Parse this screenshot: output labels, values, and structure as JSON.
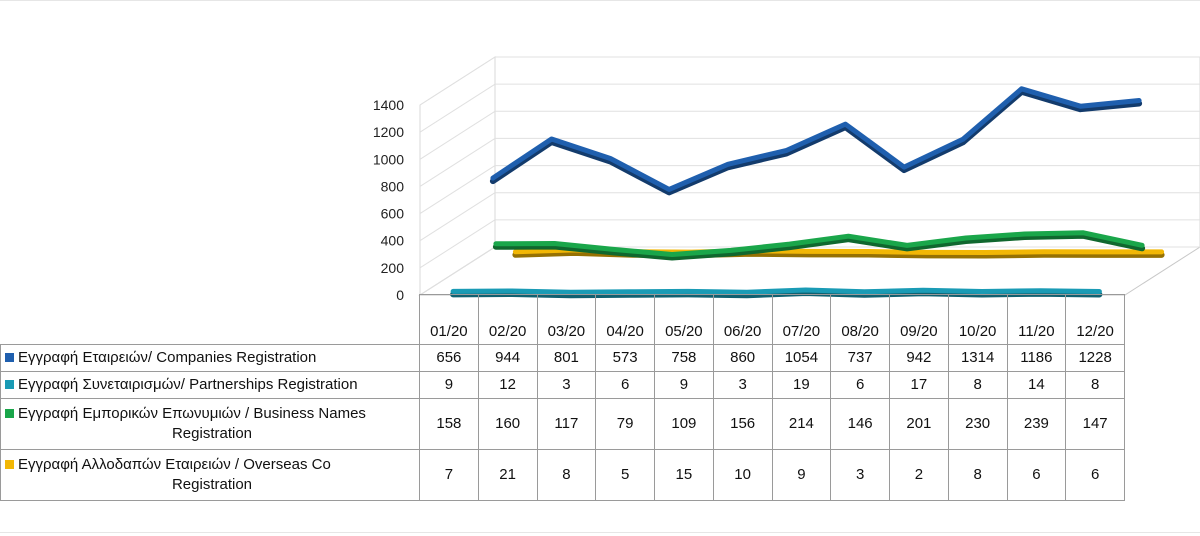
{
  "chart_data": {
    "type": "line",
    "categories": [
      "01/20",
      "02/20",
      "03/20",
      "04/20",
      "05/20",
      "06/20",
      "07/20",
      "08/20",
      "09/20",
      "10/20",
      "11/20",
      "12/20"
    ],
    "yticks": [
      "1400",
      "1200",
      "1000",
      "800",
      "600",
      "400",
      "200",
      "0"
    ],
    "ylim": [
      0,
      1400
    ],
    "series": [
      {
        "name": "Εγγραφή Εταιρειών/ Companies Registration",
        "name_line2": "",
        "color": "#1f5fae",
        "values": [
          656,
          944,
          801,
          573,
          758,
          860,
          1054,
          737,
          942,
          1314,
          1186,
          1228
        ],
        "labels": [
          "656",
          "944",
          "801",
          "573",
          "758",
          "860",
          "1054",
          "737",
          "942",
          "1314",
          "1186",
          "1228"
        ]
      },
      {
        "name": "Εγγραφή Συνεταιρισμών/ Partnerships Registration",
        "name_line2": "",
        "color": "#1a9bb5",
        "values": [
          9,
          12,
          3,
          6,
          9,
          3,
          19,
          6,
          17,
          8,
          14,
          8
        ],
        "labels": [
          "9",
          "12",
          "3",
          "6",
          "9",
          "3",
          "19",
          "6",
          "17",
          "8",
          "14",
          "8"
        ]
      },
      {
        "name": "Εγγραφή Εμπορικών Επωνυμιών / Business Names",
        "name_line2": "Registration",
        "color": "#1aa64a",
        "values": [
          158,
          160,
          117,
          79,
          109,
          156,
          214,
          146,
          201,
          230,
          239,
          147
        ],
        "labels": [
          "158",
          "160",
          "117",
          "79",
          "109",
          "156",
          "214",
          "146",
          "201",
          "230",
          "239",
          "147"
        ]
      },
      {
        "name": "Εγγραφή Αλλοδαπών Εταιρειών / Overseas Co",
        "name_line2": "Registration",
        "color": "#f2b705",
        "values": [
          7,
          21,
          8,
          5,
          15,
          10,
          9,
          3,
          2,
          8,
          6,
          6
        ],
        "labels": [
          "7",
          "21",
          "8",
          "5",
          "15",
          "10",
          "9",
          "3",
          "2",
          "8",
          "6",
          "6"
        ]
      }
    ],
    "grid": true,
    "legend": "table"
  }
}
